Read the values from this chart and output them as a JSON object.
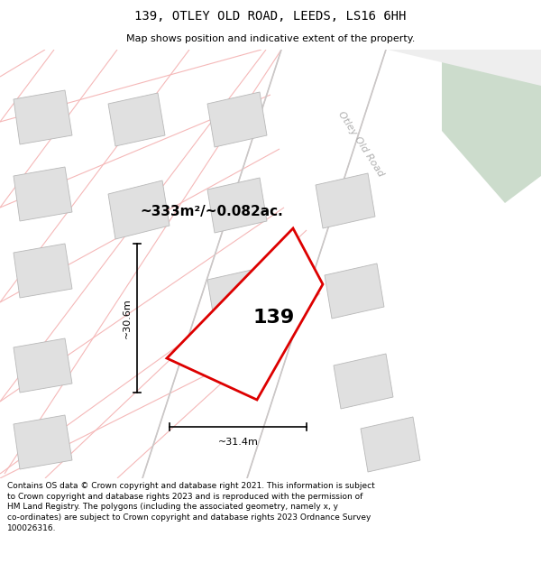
{
  "title_line1": "139, OTLEY OLD ROAD, LEEDS, LS16 6HH",
  "title_line2": "Map shows position and indicative extent of the property.",
  "footer_lines": [
    "Contains OS data © Crown copyright and database right 2021. This information is subject to Crown copyright and database rights 2023 and is reproduced with the permission of",
    "HM Land Registry. The polygons (including the associated geometry, namely x, y co-ordinates) are subject to Crown copyright and database rights 2023 Ordnance Survey",
    "100026316."
  ],
  "area_label": "~333m²/~0.082ac.",
  "property_number": "139",
  "dim_vertical": "~30.6m",
  "dim_horizontal": "~31.4m",
  "road_label": "Otley Old Road",
  "map_bg": "#ffffff",
  "building_fill": "#e0e0e0",
  "building_edge": "#b8b8b8",
  "road_pink": "#f5b8b8",
  "property_edge": "#dd0000",
  "green_color": "#ccdccc",
  "road_gray_fill": "#e8e8e8",
  "road_border_color": "#d0d0d0"
}
